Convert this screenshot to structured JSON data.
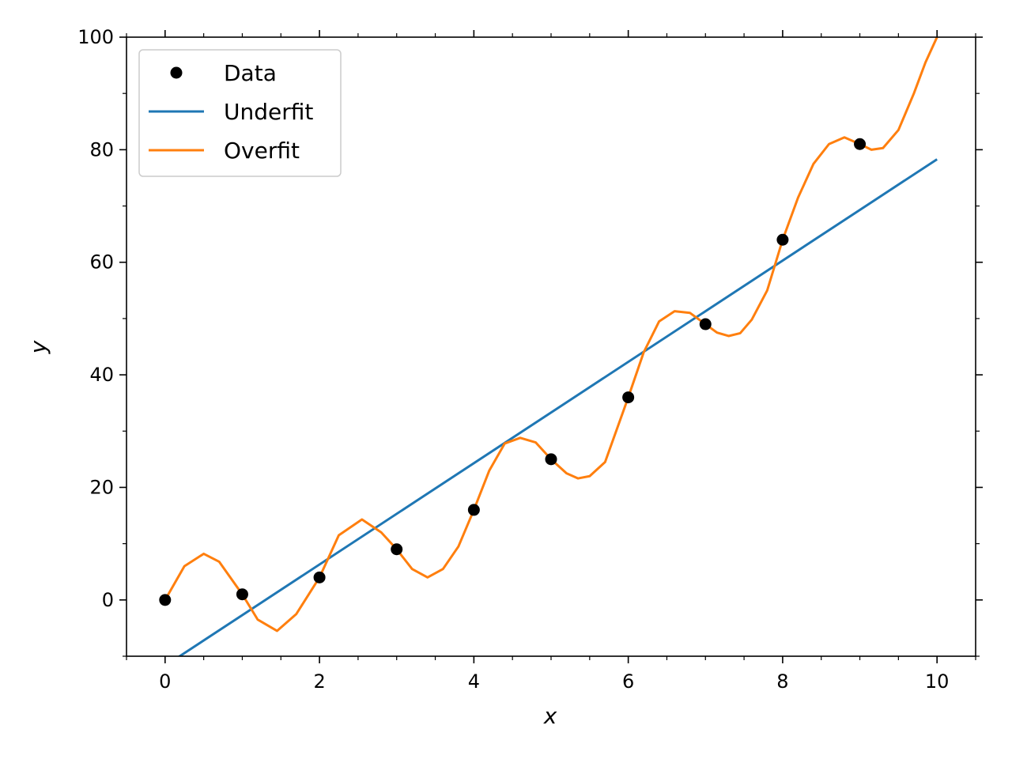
{
  "chart_data": {
    "type": "line",
    "xlabel": "x",
    "ylabel": "y",
    "xlim": [
      -0.5,
      10.5
    ],
    "ylim": [
      -10,
      100
    ],
    "x_ticks": [
      0,
      2,
      4,
      6,
      8,
      10
    ],
    "y_ticks": [
      0,
      20,
      40,
      60,
      80,
      100
    ],
    "x_minor_step": 0.5,
    "y_minor_step": 10,
    "grid": false,
    "legend_position": "upper-left",
    "series": [
      {
        "name": "Data",
        "kind": "scatter",
        "color": "#000000",
        "x": [
          0,
          1,
          2,
          3,
          4,
          5,
          6,
          7,
          8,
          9
        ],
        "y": [
          0,
          1,
          4,
          9,
          16,
          25,
          36,
          49,
          64,
          81
        ]
      },
      {
        "name": "Underfit",
        "kind": "line",
        "color": "#1f77b4",
        "x": [
          -0.5,
          10
        ],
        "y": [
          -16.2,
          78.3
        ]
      },
      {
        "name": "Overfit",
        "kind": "line",
        "color": "#ff7f0e",
        "x": [
          0.0,
          0.25,
          0.5,
          0.7,
          1.0,
          1.2,
          1.45,
          1.7,
          2.0,
          2.25,
          2.55,
          2.8,
          3.0,
          3.2,
          3.4,
          3.6,
          3.8,
          4.0,
          4.2,
          4.4,
          4.6,
          4.8,
          5.0,
          5.2,
          5.35,
          5.5,
          5.7,
          6.0,
          6.2,
          6.4,
          6.6,
          6.8,
          7.0,
          7.15,
          7.3,
          7.45,
          7.6,
          7.8,
          8.0,
          8.2,
          8.4,
          8.6,
          8.8,
          9.0,
          9.15,
          9.3,
          9.5,
          9.7,
          9.85,
          10.0
        ],
        "y": [
          0.0,
          6.0,
          8.2,
          6.8,
          1.0,
          -3.5,
          -5.5,
          -2.5,
          4.0,
          11.5,
          14.3,
          12.0,
          9.0,
          5.5,
          4.0,
          5.5,
          9.5,
          16.0,
          23.0,
          27.8,
          28.8,
          28.0,
          25.0,
          22.5,
          21.6,
          22.0,
          24.5,
          36.0,
          44.0,
          49.5,
          51.3,
          51.0,
          49.0,
          47.5,
          46.9,
          47.4,
          49.8,
          55.0,
          64.0,
          71.5,
          77.5,
          81.0,
          82.2,
          81.0,
          80.0,
          80.3,
          83.5,
          90.0,
          95.5,
          100.0
        ]
      }
    ]
  }
}
